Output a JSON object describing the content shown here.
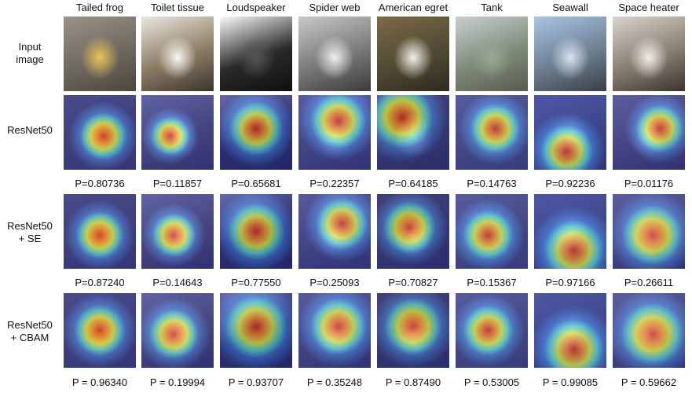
{
  "columns": [
    {
      "name": "Tailed frog",
      "colors": [
        "#9b9389",
        "#6f685e",
        "#4c463d"
      ],
      "accent": "#e9c45a"
    },
    {
      "name": "Toilet tissue",
      "colors": [
        "#e9e7e2",
        "#8d7c63",
        "#3a352f"
      ],
      "accent": "#f7f7f5"
    },
    {
      "name": "Loudspeaker",
      "colors": [
        "#fbfbfb",
        "#2a2a2a",
        "#0f0f0f"
      ],
      "accent": "#555555"
    },
    {
      "name": "Spider web",
      "colors": [
        "#c9c9c9",
        "#7a7a7a",
        "#3b3b3b"
      ],
      "accent": "#efefef"
    },
    {
      "name": "American egret",
      "colors": [
        "#7c6a47",
        "#4f4b33",
        "#2e2a1f"
      ],
      "accent": "#f3f1ea"
    },
    {
      "name": "Tank",
      "colors": [
        "#c9cfd3",
        "#7e8b77",
        "#565b52"
      ],
      "accent": "#9aa792"
    },
    {
      "name": "Seawall",
      "colors": [
        "#a9c6e6",
        "#6d7f92",
        "#3a3f45"
      ],
      "accent": "#d8e3ee"
    },
    {
      "name": "Space heater",
      "colors": [
        "#d9d4cc",
        "#8a7f73",
        "#3b352f"
      ],
      "accent": "#f2efe9"
    }
  ],
  "rows": [
    {
      "label": "Input\nimage",
      "type": "input"
    },
    {
      "label": "ResNet50",
      "type": "heat",
      "probs": [
        "P=0.80736",
        "P=0.11857",
        "P=0.65681",
        "P=0.22357",
        "P=0.64185",
        "P=0.14763",
        "P=0.92236",
        "P=0.01176"
      ]
    },
    {
      "label": "ResNet50\n+ SE",
      "type": "heat",
      "probs": [
        "P=0.87240",
        "P=0.14643",
        "P=0.77550",
        "P=0.25093",
        "P=0.70827",
        "P=0.15367",
        "P=0.97166",
        "P=0.26611"
      ]
    },
    {
      "label": "ResNet50\n+ CBAM",
      "type": "heat",
      "probs": [
        "P = 0.96340",
        "P = 0.19994",
        "P = 0.93707",
        "P = 0.35248",
        "P = 0.87490",
        "P = 0.53005",
        "P = 0.99085",
        "P = 0.59662"
      ]
    }
  ],
  "heatmap_colors": [
    "#2b2f8a",
    "#3a6ad8",
    "#4fd1e0",
    "#d7e84a",
    "#f08a2a",
    "#c8181b"
  ]
}
